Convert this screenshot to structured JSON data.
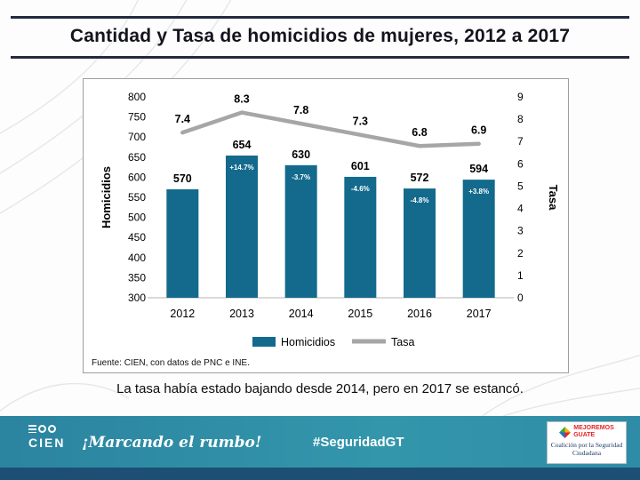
{
  "slide": {
    "title": "Cantidad y Tasa de homicidios de mujeres, 2012 a 2017",
    "caption": "La tasa había estado bajando desde 2014, pero en 2017 se estancó.",
    "source": "Fuente: CIEN, con datos de PNC e INE."
  },
  "chart_data": {
    "type": "bar+line",
    "categories": [
      "2012",
      "2013",
      "2014",
      "2015",
      "2016",
      "2017"
    ],
    "series": [
      {
        "name": "Homicidios",
        "type": "bar",
        "axis": "left",
        "values": [
          570,
          654,
          630,
          601,
          572,
          594
        ],
        "pct_labels": [
          "",
          "+14.7%",
          "-3.7%",
          "-4.6%",
          "-4.8%",
          "+3.8%"
        ],
        "color": "#136A8C"
      },
      {
        "name": "Tasa",
        "type": "line",
        "axis": "right",
        "values": [
          7.4,
          8.3,
          7.8,
          7.3,
          6.8,
          6.9
        ],
        "color": "#A6A6A6"
      }
    ],
    "left_axis": {
      "label": "Homicidios",
      "min": 300,
      "max": 800,
      "step": 50
    },
    "right_axis": {
      "label": "Tasa",
      "min": 0,
      "max": 9,
      "step": 1
    },
    "legend": [
      "Homicidios",
      "Tasa"
    ],
    "grid": false,
    "legend_position": "bottom"
  },
  "footer": {
    "logo_text": "CIEN",
    "tagline": "¡Marcando el rumbo!",
    "hashtag": "#SeguridadGT",
    "badge_line1": "MEJOREMOS",
    "badge_line2": "GUATE",
    "badge_bottom": "Coalición por la Seguridad Ciudadana"
  },
  "colors": {
    "bar": "#136A8C",
    "line": "#A6A6A6",
    "footer_band": "#2E8CA6",
    "footer_strip": "#1D4E74",
    "title_rule": "#222B3E",
    "badge_red": "#E8232A",
    "badge_navy": "#1F3B67"
  }
}
